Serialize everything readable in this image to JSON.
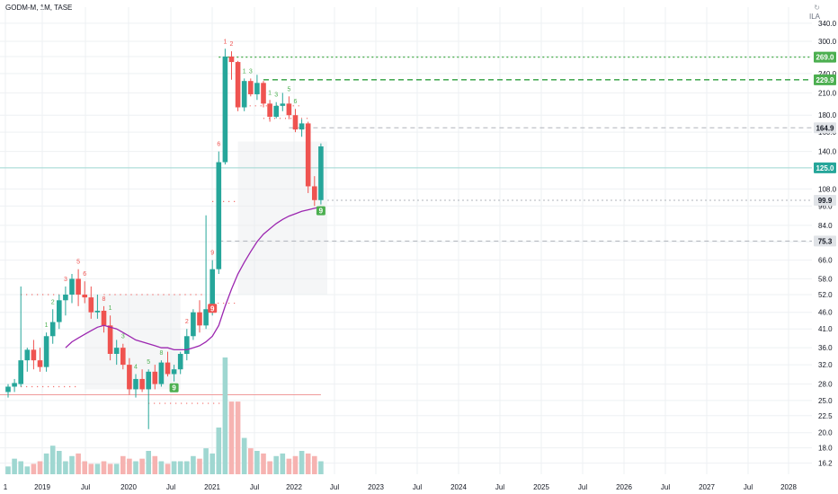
{
  "header": {
    "title": "GODM-M, 1M, TASE",
    "corner_glyph": "↻",
    "currency": "ILA"
  },
  "colors": {
    "up": "#26a69a",
    "down": "#ef5350",
    "ma": "#9c27b0",
    "green_line": "#4caf50",
    "price_tag_dark": "#4caf50",
    "grid": "#eef0f3"
  },
  "chart_data": {
    "type": "candlestick",
    "yscale": "log",
    "ylim": [
      15.0,
      380.0
    ],
    "y_ticks": [
      16.2,
      18.0,
      20.0,
      22.5,
      25.0,
      28.0,
      32.0,
      36.0,
      41.0,
      46.0,
      52.0,
      58.0,
      66.0,
      75.0,
      84.0,
      96.0,
      108.0,
      125.0,
      140.0,
      160.0,
      180.0,
      210.0,
      240.0,
      270.0,
      300.0,
      340.0
    ],
    "x_ticks": [
      "1",
      "2019",
      "Jul",
      "2020",
      "Jul",
      "2021",
      "Jul",
      "2022",
      "Jul",
      "2023",
      "Jul",
      "2024",
      "Jul",
      "2025",
      "Jul",
      "2026",
      "Jul",
      "2027",
      "Jul",
      "2028"
    ],
    "price_tags": [
      {
        "value": 269.0,
        "label": "269.0",
        "style": "green"
      },
      {
        "value": 229.9,
        "label": "229.9",
        "style": "green"
      },
      {
        "value": 164.9,
        "label": "164.9",
        "style": "gray"
      },
      {
        "value": 125.0,
        "label": "125.0",
        "style": "teal"
      },
      {
        "value": 99.9,
        "label": "99.9",
        "style": "gray"
      },
      {
        "value": 75.3,
        "label": "75.3",
        "style": "gray"
      }
    ],
    "candles": [
      {
        "o": 26.5,
        "h": 28.0,
        "l": 25.5,
        "c": 27.5
      },
      {
        "o": 27.5,
        "h": 29.0,
        "l": 26.5,
        "c": 28.2
      },
      {
        "o": 28.0,
        "h": 55.0,
        "l": 27.5,
        "c": 33.0
      },
      {
        "o": 33.0,
        "h": 36.0,
        "l": 30.5,
        "c": 35.5
      },
      {
        "o": 35.5,
        "h": 38.0,
        "l": 31.0,
        "c": 33.0
      },
      {
        "o": 33.0,
        "h": 36.0,
        "l": 30.5,
        "c": 31.5
      },
      {
        "o": 31.5,
        "h": 40.0,
        "l": 30.5,
        "c": 39.0
      },
      {
        "o": 39.0,
        "h": 47.0,
        "l": 37.0,
        "c": 43.0
      },
      {
        "o": 43.0,
        "h": 52.0,
        "l": 41.0,
        "c": 50.0
      },
      {
        "o": 50.0,
        "h": 55.0,
        "l": 45.0,
        "c": 52.0
      },
      {
        "o": 52.0,
        "h": 60.0,
        "l": 49.0,
        "c": 58.0
      },
      {
        "o": 58.0,
        "h": 62.0,
        "l": 48.0,
        "c": 52.0
      },
      {
        "o": 52.0,
        "h": 57.0,
        "l": 49.0,
        "c": 51.0
      },
      {
        "o": 51.0,
        "h": 55.0,
        "l": 44.0,
        "c": 46.0
      },
      {
        "o": 46.0,
        "h": 52.0,
        "l": 44.0,
        "c": 46.5
      },
      {
        "o": 46.5,
        "h": 48.0,
        "l": 40.0,
        "c": 42.0
      },
      {
        "o": 42.0,
        "h": 45.0,
        "l": 33.0,
        "c": 34.5
      },
      {
        "o": 34.5,
        "h": 38.0,
        "l": 32.0,
        "c": 36.0
      },
      {
        "o": 36.0,
        "h": 37.0,
        "l": 31.0,
        "c": 32.0
      },
      {
        "o": 32.0,
        "h": 33.5,
        "l": 26.0,
        "c": 27.0
      },
      {
        "o": 27.0,
        "h": 30.0,
        "l": 25.5,
        "c": 29.0
      },
      {
        "o": 29.0,
        "h": 31.0,
        "l": 26.5,
        "c": 27.0
      },
      {
        "o": 27.0,
        "h": 31.0,
        "l": 20.5,
        "c": 30.5
      },
      {
        "o": 30.5,
        "h": 32.0,
        "l": 27.0,
        "c": 28.0
      },
      {
        "o": 28.0,
        "h": 33.0,
        "l": 27.5,
        "c": 32.5
      },
      {
        "o": 32.5,
        "h": 35.0,
        "l": 29.5,
        "c": 30.0
      },
      {
        "o": 30.0,
        "h": 32.0,
        "l": 28.5,
        "c": 31.0
      },
      {
        "o": 31.0,
        "h": 35.0,
        "l": 30.0,
        "c": 34.5
      },
      {
        "o": 34.5,
        "h": 41.0,
        "l": 33.0,
        "c": 39.0
      },
      {
        "o": 39.0,
        "h": 47.0,
        "l": 38.0,
        "c": 46.0
      },
      {
        "o": 46.0,
        "h": 50.0,
        "l": 40.0,
        "c": 42.0
      },
      {
        "o": 42.0,
        "h": 90.0,
        "l": 41.0,
        "c": 47.0
      },
      {
        "o": 47.0,
        "h": 66.0,
        "l": 45.0,
        "c": 62.0
      },
      {
        "o": 62.0,
        "h": 140.0,
        "l": 60.0,
        "c": 130.0
      },
      {
        "o": 130.0,
        "h": 285.0,
        "l": 128.0,
        "c": 270.0
      },
      {
        "o": 270.0,
        "h": 280.0,
        "l": 230.0,
        "c": 260.0
      },
      {
        "o": 260.0,
        "h": 262.0,
        "l": 185.0,
        "c": 190.0
      },
      {
        "o": 190.0,
        "h": 232.0,
        "l": 185.0,
        "c": 228.0
      },
      {
        "o": 228.0,
        "h": 232.0,
        "l": 205.0,
        "c": 208.0
      },
      {
        "o": 208.0,
        "h": 238.0,
        "l": 200.0,
        "c": 225.0
      },
      {
        "o": 225.0,
        "h": 228.0,
        "l": 190.0,
        "c": 195.0
      },
      {
        "o": 195.0,
        "h": 200.0,
        "l": 172.0,
        "c": 178.0
      },
      {
        "o": 178.0,
        "h": 197.0,
        "l": 176.0,
        "c": 192.0
      },
      {
        "o": 192.0,
        "h": 210.0,
        "l": 185.0,
        "c": 195.0
      },
      {
        "o": 195.0,
        "h": 205.0,
        "l": 175.0,
        "c": 180.0
      },
      {
        "o": 180.0,
        "h": 188.0,
        "l": 160.0,
        "c": 163.0
      },
      {
        "o": 163.0,
        "h": 175.0,
        "l": 155.0,
        "c": 170.0
      },
      {
        "o": 170.0,
        "h": 172.0,
        "l": 105.0,
        "c": 110.0
      },
      {
        "o": 110.0,
        "h": 118.0,
        "l": 96.0,
        "c": 100.0
      },
      {
        "o": 100.0,
        "h": 148.0,
        "l": 97.0,
        "c": 145.0
      }
    ],
    "volumes": [
      3,
      6,
      5,
      3,
      4,
      5,
      8,
      11,
      9,
      5,
      7,
      8,
      5,
      4,
      4,
      5,
      4,
      4,
      7,
      6,
      5,
      6,
      9,
      7,
      5,
      4,
      5,
      5,
      5,
      7,
      6,
      10,
      8,
      18,
      45,
      28,
      28,
      14,
      10,
      9,
      8,
      5,
      7,
      8,
      6,
      7,
      9,
      8,
      7,
      5
    ],
    "moving_average": [
      null,
      null,
      null,
      null,
      null,
      null,
      null,
      null,
      null,
      36.0,
      37.5,
      38.5,
      39.5,
      40.5,
      41.5,
      42.0,
      41.5,
      41.0,
      40.0,
      39.0,
      38.0,
      37.5,
      37.0,
      36.5,
      36.0,
      36.0,
      35.5,
      35.5,
      35.5,
      36.0,
      36.5,
      37.5,
      39.0,
      42.0,
      48.0,
      54.0,
      60.0,
      65.0,
      70.0,
      75.0,
      79.0,
      82.0,
      85.0,
      87.5,
      89.5,
      91.0,
      92.5,
      93.5,
      94.5,
      95.5
    ],
    "annotations": [
      {
        "i": 6,
        "text": "1",
        "color": "green"
      },
      {
        "i": 7,
        "text": "2",
        "color": "green"
      },
      {
        "i": 9,
        "text": "3",
        "color": "red"
      },
      {
        "i": 11,
        "text": "5",
        "color": "red"
      },
      {
        "i": 12,
        "text": "6",
        "color": "red"
      },
      {
        "i": 15,
        "text": "8",
        "color": "red"
      },
      {
        "i": 16,
        "text": "1",
        "color": "green"
      },
      {
        "i": 18,
        "text": "3",
        "color": "green"
      },
      {
        "i": 20,
        "text": "4",
        "color": "green"
      },
      {
        "i": 22,
        "text": "5",
        "color": "green"
      },
      {
        "i": 24,
        "text": "8",
        "color": "green"
      },
      {
        "i": 28,
        "text": "2",
        "color": "red"
      },
      {
        "i": 32,
        "text": "9",
        "color": "red"
      },
      {
        "i": 33,
        "text": "6",
        "color": "red"
      },
      {
        "i": 34,
        "text": "1",
        "color": "red"
      },
      {
        "i": 35,
        "text": "2",
        "color": "red"
      },
      {
        "i": 37,
        "text": "1",
        "color": "green"
      },
      {
        "i": 38,
        "text": "3",
        "color": "green"
      },
      {
        "i": 41,
        "text": "1",
        "color": "green"
      },
      {
        "i": 42,
        "text": "3",
        "color": "green"
      },
      {
        "i": 44,
        "text": "5",
        "color": "green"
      },
      {
        "i": 45,
        "text": "6",
        "color": "green"
      }
    ],
    "badges": [
      {
        "i": 26,
        "text": "9",
        "color": "green"
      },
      {
        "i": 32,
        "text": "9",
        "color": "red"
      },
      {
        "i": 49,
        "text": "9",
        "color": "green"
      }
    ]
  }
}
